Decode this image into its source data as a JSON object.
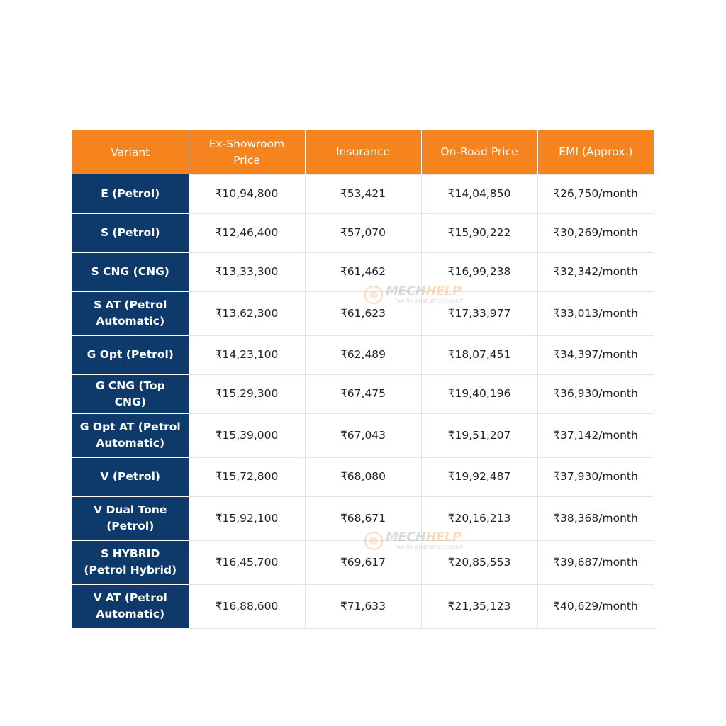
{
  "table": {
    "headers": [
      "Variant",
      "Ex-Showroom Price",
      "Insurance",
      "On-Road Price",
      "EMI (Approx.)"
    ],
    "rows": [
      {
        "variant": "E (Petrol)",
        "ex_showroom": "₹10,94,800",
        "insurance": "₹53,421",
        "on_road": "₹14,04,850",
        "emi": "₹26,750/month"
      },
      {
        "variant": "S (Petrol)",
        "ex_showroom": "₹12,46,400",
        "insurance": "₹57,070",
        "on_road": "₹15,90,222",
        "emi": "₹30,269/month"
      },
      {
        "variant": "S CNG (CNG)",
        "ex_showroom": "₹13,33,300",
        "insurance": "₹61,462",
        "on_road": "₹16,99,238",
        "emi": "₹32,342/month"
      },
      {
        "variant": "S AT (Petrol Automatic)",
        "ex_showroom": "₹13,62,300",
        "insurance": "₹61,623",
        "on_road": "₹17,33,977",
        "emi": "₹33,013/month"
      },
      {
        "variant": "G Opt (Petrol)",
        "ex_showroom": "₹14,23,100",
        "insurance": "₹62,489",
        "on_road": "₹18,07,451",
        "emi": "₹34,397/month"
      },
      {
        "variant": "G CNG (Top CNG)",
        "ex_showroom": "₹15,29,300",
        "insurance": "₹67,475",
        "on_road": "₹19,40,196",
        "emi": "₹36,930/month"
      },
      {
        "variant": "G Opt AT (Petrol Automatic)",
        "ex_showroom": "₹15,39,000",
        "insurance": "₹67,043",
        "on_road": "₹19,51,207",
        "emi": "₹37,142/month"
      },
      {
        "variant": "V (Petrol)",
        "ex_showroom": "₹15,72,800",
        "insurance": "₹68,080",
        "on_road": "₹19,92,487",
        "emi": "₹37,930/month"
      },
      {
        "variant": "V Dual Tone (Petrol)",
        "ex_showroom": "₹15,92,100",
        "insurance": "₹68,671",
        "on_road": "₹20,16,213",
        "emi": "₹38,368/month"
      },
      {
        "variant": "S HYBRID (Petrol Hybrid)",
        "ex_showroom": "₹16,45,700",
        "insurance": "₹69,617",
        "on_road": "₹20,85,553",
        "emi": "₹39,687/month"
      },
      {
        "variant": "V AT (Petrol Automatic)",
        "ex_showroom": "₹16,88,600",
        "insurance": "₹71,633",
        "on_road": "₹21,35,123",
        "emi": "₹40,629/month"
      }
    ]
  },
  "watermark": {
    "brand_part1": "MECH",
    "brand_part2": "HELP",
    "tagline": "\"we fix what other's can't\""
  },
  "colors": {
    "header_bg": "#f5841f",
    "variant_bg": "#0e3a6b"
  }
}
